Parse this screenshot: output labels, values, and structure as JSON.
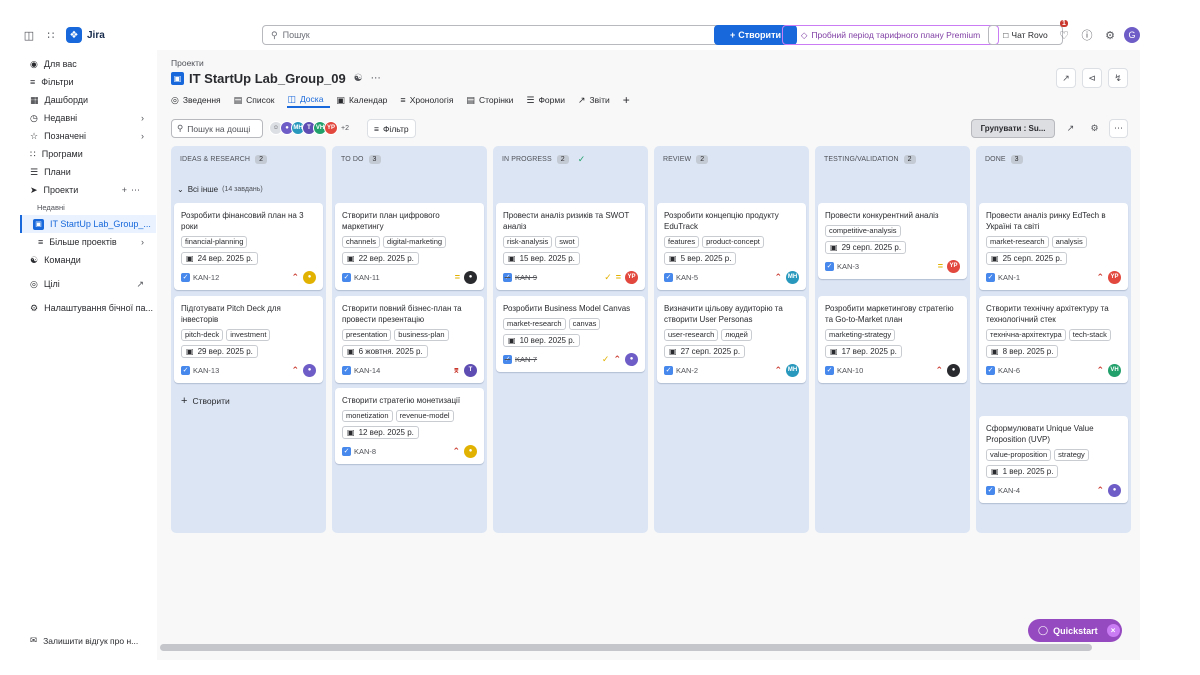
{
  "topbar": {
    "app_name": "Jira",
    "search_placeholder": "Пошук",
    "create_label": "Створити",
    "premium_label": "Пробний період тарифного плану Premium",
    "rovo_label": "Чат Rovo",
    "notif_count": "1",
    "user_initial": "G"
  },
  "sidebar": {
    "items": [
      {
        "label": "Для вас",
        "icon": "user-circle-icon"
      },
      {
        "label": "Фільтри",
        "icon": "filter-icon"
      },
      {
        "label": "Дашборди",
        "icon": "dashboard-icon"
      },
      {
        "label": "Недавні",
        "icon": "clock-icon"
      },
      {
        "label": "Позначені",
        "icon": "star-icon"
      },
      {
        "label": "Програми",
        "icon": "apps-icon"
      },
      {
        "label": "Плани",
        "icon": "plans-icon"
      },
      {
        "label": "Проекти",
        "icon": "rocket-icon"
      }
    ],
    "recent_label": "Недавні",
    "project_item": "IT StartUp Lab_Group_...",
    "more_projects": "Більше проектів",
    "teams": "Команди",
    "goals": "Цілі",
    "sidebar_settings": "Налаштування бічної па...",
    "feedback": "Залишити відгук про н..."
  },
  "header": {
    "breadcrumb": "Проекти",
    "project_title": "IT StartUp Lab_Group_09"
  },
  "tabs": [
    {
      "label": "Зведення",
      "icon": "globe-icon"
    },
    {
      "label": "Список",
      "icon": "list-icon"
    },
    {
      "label": "Доска",
      "icon": "board-icon"
    },
    {
      "label": "Календар",
      "icon": "calendar-icon"
    },
    {
      "label": "Хронологія",
      "icon": "timeline-icon"
    },
    {
      "label": "Сторінки",
      "icon": "pages-icon"
    },
    {
      "label": "Форми",
      "icon": "forms-icon"
    },
    {
      "label": "Звіти",
      "icon": "reports-icon"
    }
  ],
  "toolbar": {
    "search_placeholder": "Пошук на дошці",
    "avatars_more": "+2",
    "filter_label": "Фільтр",
    "group_label": "Групувати : Su..."
  },
  "swimlane": {
    "label": "Всі інше",
    "count": "(14 завдань)"
  },
  "columns": [
    {
      "title": "IDEAS & RESEARCH",
      "count": "2"
    },
    {
      "title": "TO DO",
      "count": "3"
    },
    {
      "title": "IN PROGRESS",
      "count": "2"
    },
    {
      "title": "REVIEW",
      "count": "2"
    },
    {
      "title": "TESTING/VALIDATION",
      "count": "2"
    },
    {
      "title": "DONE",
      "count": "3"
    }
  ],
  "cards": {
    "c0": [
      {
        "title": "Розробити фінансовий план на 3 роки",
        "labels": [
          "financial-planning"
        ],
        "due": "24 вер. 2025 р.",
        "key": "KAN-12",
        "avatar": ""
      },
      {
        "title": "Підготувати Pitch Deck для інвесторів",
        "labels": [
          "pitch-deck",
          "investment"
        ],
        "due": "29 вер. 2025 р.",
        "key": "KAN-13",
        "avatar": ""
      }
    ],
    "c1": [
      {
        "title": "Створити план цифрового маркетингу",
        "labels": [
          "channels",
          "digital-marketing"
        ],
        "due": "22 вер. 2025 р.",
        "key": "KAN-11",
        "avatar": ""
      },
      {
        "title": "Створити повний бізнес-план та провести презентацію",
        "labels": [
          "presentation",
          "business-plan"
        ],
        "due": "6 жовтня. 2025 р.",
        "key": "KAN-14",
        "avatar": "T"
      },
      {
        "title": "Створити стратегію монетизації",
        "labels": [
          "monetization",
          "revenue-model"
        ],
        "due": "12 вер. 2025 р.",
        "key": "KAN-8",
        "avatar": ""
      }
    ],
    "c2": [
      {
        "title": "Провести аналіз ризиків та SWOT аналіз",
        "labels": [
          "risk-analysis",
          "swot"
        ],
        "due": "15 вер. 2025 р.",
        "key": "KAN-9",
        "avatar": "YP"
      },
      {
        "title": "Розробити Business Model Canvas",
        "labels": [
          "market-research",
          "canvas"
        ],
        "due": "10 вер. 2025 р.",
        "key": "KAN-7",
        "avatar": ""
      }
    ],
    "c3": [
      {
        "title": "Розробити концепцію продукту EduTrack",
        "labels": [
          "features",
          "product-concept"
        ],
        "due": "5 вер. 2025 р.",
        "key": "KAN-5",
        "avatar": "MH"
      },
      {
        "title": "Визначити цільову аудиторію та створити User Personas",
        "labels": [
          "user-research",
          "людей"
        ],
        "due": "27 серп. 2025 р.",
        "key": "KAN-2",
        "avatar": "MH"
      }
    ],
    "c4": [
      {
        "title": "Провести конкурентний аналіз",
        "labels": [
          "competitive-analysis"
        ],
        "due": "29 серп. 2025 р.",
        "key": "KAN-3",
        "avatar": "YP"
      },
      {
        "title": "Розробити маркетингову стратегію та Go-to-Market план",
        "labels": [
          "marketing-strategy"
        ],
        "due": "17 вер. 2025 р.",
        "key": "KAN-10",
        "avatar": ""
      }
    ],
    "c5": [
      {
        "title": "Провести аналіз ринку EdTech в Україні та світі",
        "labels": [
          "market-research",
          "analysis"
        ],
        "due": "25 серп. 2025 р.",
        "key": "KAN-1",
        "avatar": "YP"
      },
      {
        "title": "Створити технічну архітектуру та технологічний стек",
        "labels": [
          "технічна-архітектура",
          "tech-stack"
        ],
        "due": "8 вер. 2025 р.",
        "key": "KAN-6",
        "avatar": "VH"
      },
      {
        "title": "Сформулювати Unique Value Proposition (UVP)",
        "labels": [
          "value-proposition",
          "strategy"
        ],
        "due": "1 вер. 2025 р.",
        "key": "KAN-4",
        "avatar": ""
      }
    ]
  },
  "create_label": "Створити",
  "quickstart_label": "Quickstart",
  "colors": {
    "brand": "#1868db",
    "column_bg": "#dbe5f4",
    "premium": "#803fa5",
    "quickstart": "#964ac0"
  }
}
